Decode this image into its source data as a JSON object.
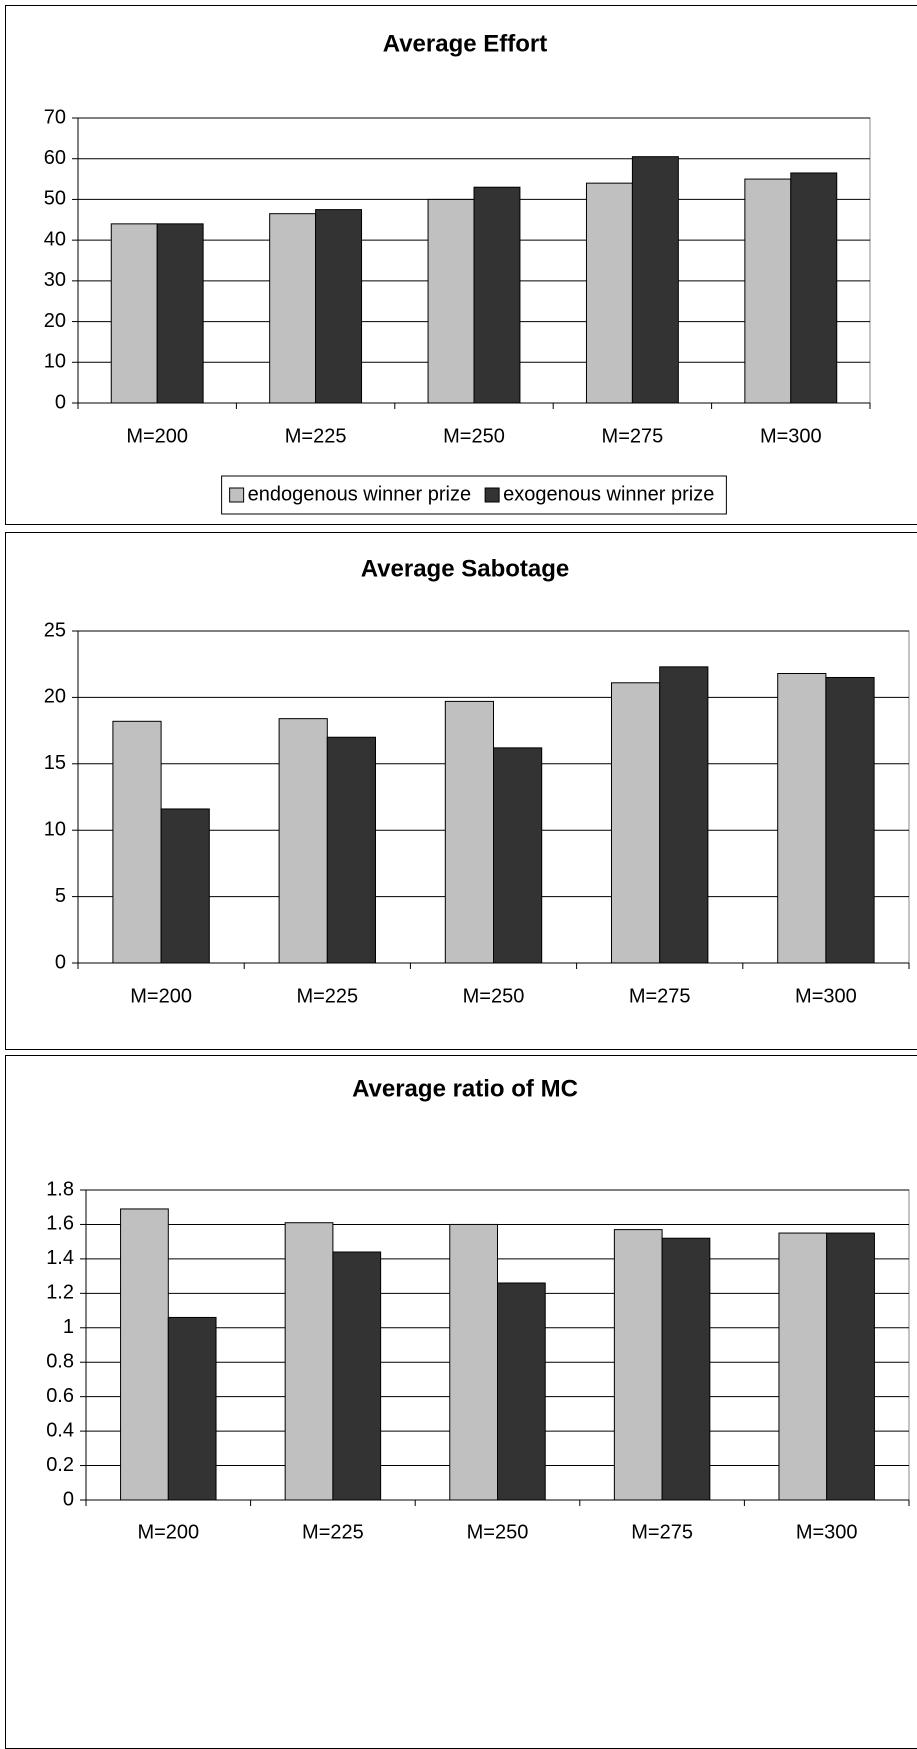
{
  "chart_data": [
    {
      "type": "bar",
      "title": "Average Effort",
      "categories": [
        "M=200",
        "M=225",
        "M=250",
        "M=275",
        "M=300"
      ],
      "series": [
        {
          "name": "endogenous winner prize",
          "color": "#c0c0c0",
          "values": [
            44,
            46.5,
            50,
            54,
            55
          ]
        },
        {
          "name": "exogenous winner prize",
          "color": "#333333",
          "values": [
            44,
            47.5,
            53,
            60.5,
            56.5
          ]
        }
      ],
      "ylim": [
        0,
        70
      ],
      "yticks": [
        0,
        10,
        20,
        30,
        40,
        50,
        60,
        70
      ],
      "grid": true,
      "legend": "bottom"
    },
    {
      "type": "bar",
      "title": "Average Sabotage",
      "categories": [
        "M=200",
        "M=225",
        "M=250",
        "M=275",
        "M=300"
      ],
      "series": [
        {
          "color": "#c0c0c0",
          "values": [
            18.2,
            18.4,
            19.7,
            21.1,
            21.8
          ]
        },
        {
          "color": "#333333",
          "values": [
            11.6,
            17,
            16.2,
            22.3,
            21.5
          ]
        }
      ],
      "ylim": [
        0,
        25
      ],
      "yticks": [
        0,
        5,
        10,
        15,
        20,
        25
      ],
      "grid": true
    },
    {
      "type": "bar",
      "title": "Average ratio of MC",
      "categories": [
        "M=200",
        "M=225",
        "M=250",
        "M=275",
        "M=300"
      ],
      "series": [
        {
          "color": "#c0c0c0",
          "values": [
            1.69,
            1.61,
            1.6,
            1.57,
            1.55
          ]
        },
        {
          "color": "#333333",
          "values": [
            1.06,
            1.44,
            1.26,
            1.52,
            1.55
          ]
        }
      ],
      "ylim": [
        0,
        1.8
      ],
      "yticks": [
        0,
        0.2,
        0.4,
        0.6,
        0.8,
        1,
        1.2,
        1.4,
        1.6,
        1.8
      ],
      "grid": true
    }
  ]
}
